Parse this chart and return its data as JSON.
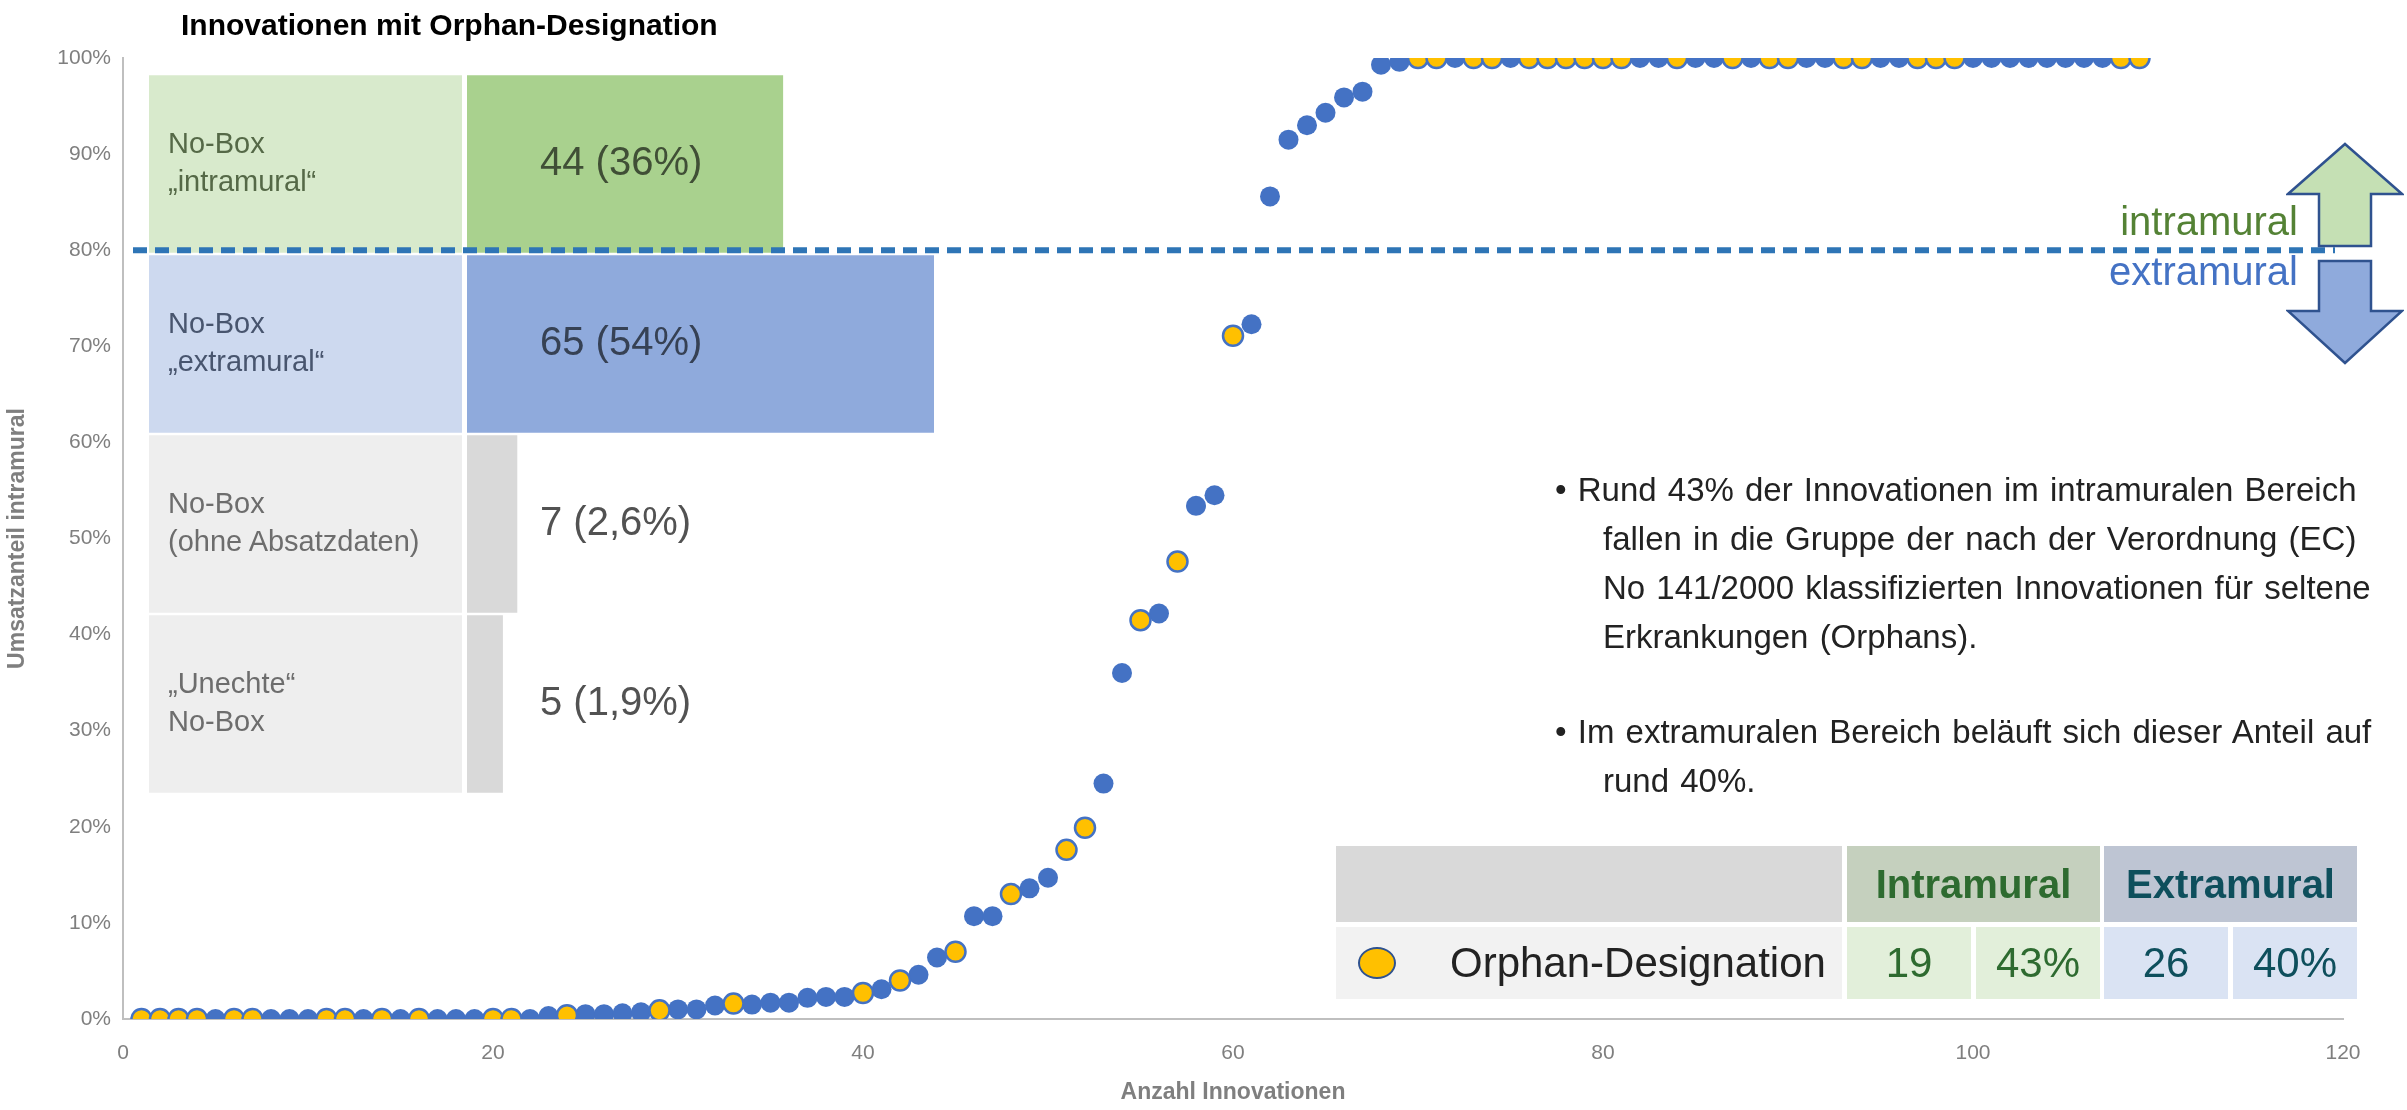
{
  "chart_data": [
    {
      "type": "scatter",
      "xlabel": "Anzahl Innovationen",
      "ylabel": "Umsatzanteil intramural",
      "xlim": [
        0,
        120
      ],
      "xticks": [
        0,
        20,
        40,
        60,
        80,
        100,
        120
      ],
      "ylim": [
        0,
        100
      ],
      "yticks": [
        {
          "value": 0,
          "label": "0%"
        },
        {
          "value": 10,
          "label": "10%"
        },
        {
          "value": 20,
          "label": "20%"
        },
        {
          "value": 30,
          "label": "30%"
        },
        {
          "value": 40,
          "label": "40%"
        },
        {
          "value": 50,
          "label": "50%"
        },
        {
          "value": 60,
          "label": "60%"
        },
        {
          "value": 70,
          "label": "70%"
        },
        {
          "value": 80,
          "label": "80%"
        },
        {
          "value": 90,
          "label": "90%"
        },
        {
          "value": 100,
          "label": "100%"
        }
      ],
      "grid": false,
      "legend": "bottom right",
      "marker": "circle",
      "series": [
        {
          "color": "#4472c4",
          "x": [
            5,
            8,
            9,
            10,
            13,
            15,
            17,
            18,
            19,
            22,
            23,
            25,
            26,
            27,
            28,
            30,
            31,
            32,
            34,
            35,
            36,
            37,
            38,
            39,
            41,
            43,
            44,
            46,
            47,
            49,
            50,
            53,
            54,
            56,
            58,
            59,
            61,
            62,
            63,
            64,
            65,
            66,
            67,
            68,
            69,
            72,
            75,
            82,
            83,
            85,
            86,
            88,
            91,
            92,
            95,
            96,
            100,
            101,
            102,
            103,
            104,
            105,
            106,
            107
          ],
          "values": [
            0,
            0,
            0,
            0,
            0,
            0,
            0,
            0,
            0,
            0,
            0.3,
            0.5,
            0.5,
            0.6,
            0.7,
            1.0,
            1.0,
            1.4,
            1.5,
            1.7,
            1.7,
            2.2,
            2.3,
            2.3,
            3.1,
            4.6,
            6.4,
            10.7,
            10.7,
            13.6,
            14.7,
            24.5,
            36.0,
            42.2,
            53.4,
            54.5,
            72.3,
            85.6,
            91.5,
            93.0,
            94.3,
            95.9,
            96.5,
            99.3,
            99.6,
            100,
            100,
            100,
            100,
            100,
            100,
            100,
            100,
            100,
            100,
            100,
            100,
            100,
            100,
            100,
            100,
            100,
            100,
            100
          ]
        },
        {
          "name": "Orphan-Designation",
          "color": "#ffc000",
          "x": [
            1,
            2,
            3,
            4,
            6,
            7,
            11,
            12,
            14,
            16,
            20,
            21,
            24,
            29,
            33,
            40,
            42,
            45,
            48,
            51,
            52,
            55,
            57,
            60,
            70,
            71,
            73,
            74,
            76,
            77,
            78,
            79,
            80,
            81,
            84,
            87,
            89,
            90,
            93,
            94,
            97,
            98,
            99,
            108,
            109
          ],
          "values": [
            0,
            0,
            0,
            0,
            0,
            0,
            0,
            0,
            0,
            0,
            0,
            0,
            0.4,
            0.9,
            1.6,
            2.7,
            4.0,
            7.0,
            13.0,
            17.6,
            19.9,
            41.5,
            47.6,
            71.1,
            100,
            100,
            100,
            100,
            100,
            100,
            100,
            100,
            100,
            100,
            100,
            100,
            100,
            100,
            100,
            100,
            100,
            100,
            100,
            100,
            100
          ]
        }
      ],
      "ref_lines": [
        {
          "axis": "y",
          "value": 80,
          "color": "#2e75b6",
          "line_style": "dashed"
        }
      ],
      "annotations": [
        "intramural",
        "extramural",
        "• Rund 43% der Innovationen im intramuralen Bereich fallen in die Gruppe der nach der Verordnung (EC) No 141/2000 klassifizierten Innovationen für seltene Erkrankungen (Orphans).",
        "• Im extramuralen Bereich beläuft sich dieser Anteil auf rund 40%."
      ]
    },
    {
      "type": "bar",
      "orientation": "horizontal",
      "title": "Innovationen mit Orphan-Designation",
      "tick_labels": false,
      "categories": [
        "No-Box\n„intramural“",
        "No-Box\n„extramural“",
        "No-Box\n(ohne Absatzdaten)",
        "„Unechte“\nNo-Box"
      ],
      "values": [
        44,
        65,
        7,
        5
      ],
      "colors": [
        "#a9d18e",
        "#8faadc",
        "#d9d9d9",
        "#d9d9d9"
      ],
      "value_labels": [
        "44 (36%)",
        "65 (54%)",
        "7 (2,6%)",
        "5 (1,9%)"
      ]
    },
    {
      "type": "other",
      "categories": [
        "Intramural",
        "Extramural"
      ],
      "colors": [
        "#e2efda",
        "#dae3f3"
      ],
      "values": [
        19,
        26
      ],
      "data_labels": true,
      "annotations": [
        "43%",
        "40%"
      ]
    }
  ]
}
